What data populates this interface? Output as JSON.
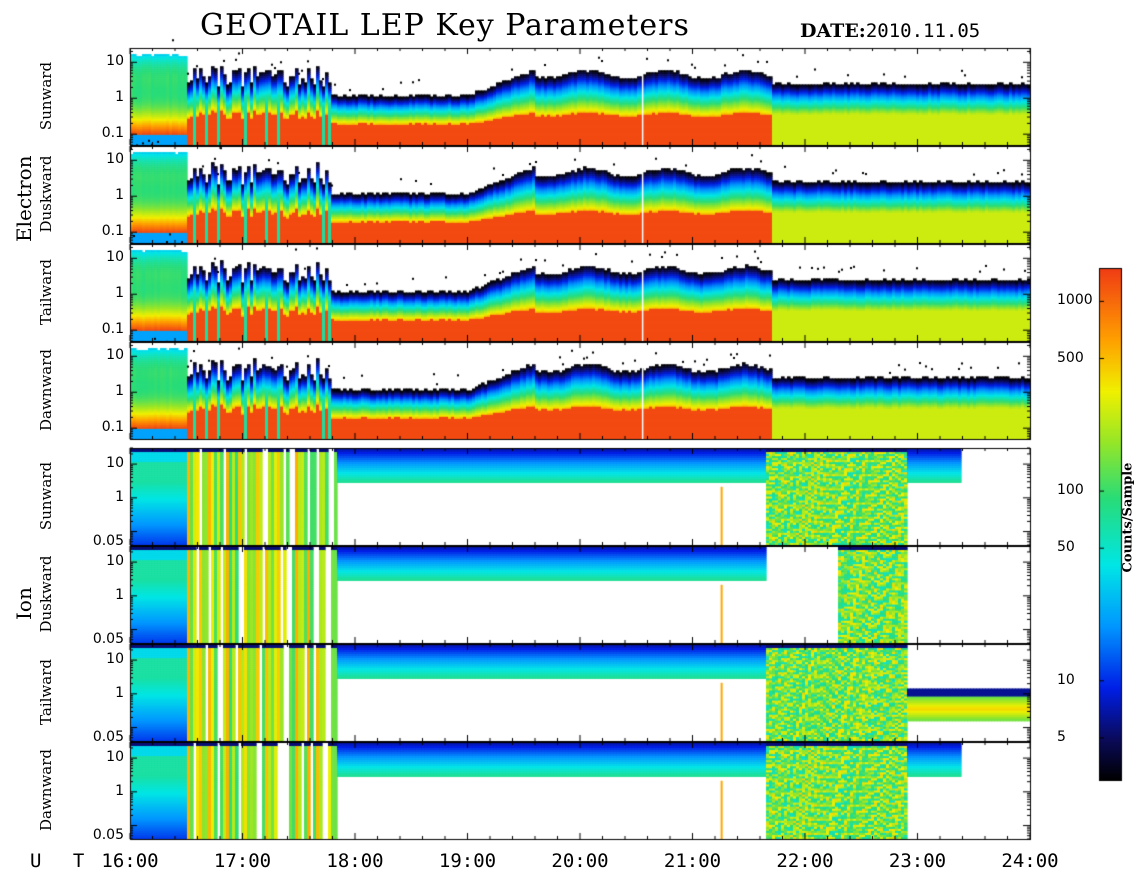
{
  "title": "GEOTAIL LEP Key Parameters",
  "date_label": "DATE:",
  "date_value": "2010.11.05",
  "x_axis_label": "U T",
  "colorbar_label": "Counts/Sample",
  "colors": {
    "background": "#ffffff",
    "frame": "#000000"
  },
  "chart_data": {
    "type": "heatmap",
    "x_range_hours": [
      16,
      24
    ],
    "x_ticks": [
      "16:00",
      "17:00",
      "18:00",
      "19:00",
      "20:00",
      "21:00",
      "22:00",
      "23:00",
      "24:00"
    ],
    "y_scale": "log",
    "colorbar": {
      "scale": "log",
      "range": [
        3,
        1500
      ],
      "ticks": [
        "1000",
        "500",
        "100",
        "50",
        "10",
        "5"
      ],
      "tick_values": [
        1000,
        500,
        100,
        50,
        10,
        5
      ],
      "colormap": "rainbow (black-blue-cyan-green-yellow-red)"
    },
    "groups": [
      {
        "name": "Electron",
        "y_ticks": [
          "10",
          "1",
          "0.1"
        ],
        "y_tick_values": [
          10,
          1,
          0.1
        ],
        "y_range": [
          0.05,
          25
        ],
        "panels": [
          {
            "name": "Sunward"
          },
          {
            "name": "Duskward"
          },
          {
            "name": "Tailward"
          },
          {
            "name": "Dawnward"
          }
        ]
      },
      {
        "name": "Ion",
        "y_ticks": [
          "10",
          "1",
          "0.05"
        ],
        "y_tick_values": [
          10,
          1,
          0.05
        ],
        "y_range": [
          0.04,
          30
        ],
        "panels": [
          {
            "name": "Sunward"
          },
          {
            "name": "Duskward"
          },
          {
            "name": "Tailward"
          },
          {
            "name": "Dawnward"
          }
        ]
      }
    ]
  }
}
